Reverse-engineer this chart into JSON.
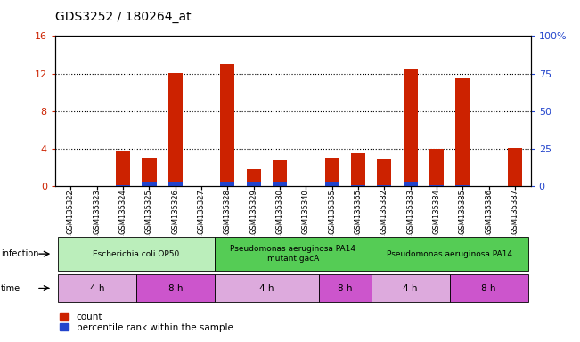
{
  "title": "GDS3252 / 180264_at",
  "samples": [
    "GSM135322",
    "GSM135323",
    "GSM135324",
    "GSM135325",
    "GSM135326",
    "GSM135327",
    "GSM135328",
    "GSM135329",
    "GSM135330",
    "GSM135340",
    "GSM135355",
    "GSM135365",
    "GSM135382",
    "GSM135383",
    "GSM135384",
    "GSM135385",
    "GSM135386",
    "GSM135387"
  ],
  "count_values_all": [
    0,
    0,
    3.7,
    3.1,
    12.1,
    0,
    13.0,
    1.8,
    2.8,
    0,
    3.1,
    3.5,
    3.0,
    12.4,
    4.0,
    11.5,
    0,
    4.1
  ],
  "percentile_values_all": [
    0,
    0,
    1.0,
    3.2,
    3.1,
    0,
    3.1,
    3.0,
    3.0,
    0,
    3.0,
    0.8,
    1.0,
    3.3,
    1.0,
    0.8,
    0,
    0.4
  ],
  "ylim_left": [
    0,
    16
  ],
  "ylim_right": [
    0,
    100
  ],
  "yticks_left": [
    0,
    4,
    8,
    12,
    16
  ],
  "yticks_right": [
    0,
    25,
    50,
    75,
    100
  ],
  "bar_color_red": "#cc2200",
  "bar_color_blue": "#2244cc",
  "bar_width": 0.55,
  "infection_groups": [
    {
      "label": "Escherichia coli OP50",
      "start": 0,
      "end": 5,
      "color": "#bbeebb"
    },
    {
      "label": "Pseudomonas aeruginosa PA14\nmutant gacA",
      "start": 6,
      "end": 11,
      "color": "#55cc55"
    },
    {
      "label": "Pseudomonas aeruginosa PA14",
      "start": 12,
      "end": 17,
      "color": "#55cc55"
    }
  ],
  "time_groups": [
    {
      "label": "4 h",
      "start": 0,
      "end": 2,
      "color": "#ddaadd"
    },
    {
      "label": "8 h",
      "start": 3,
      "end": 5,
      "color": "#cc55cc"
    },
    {
      "label": "4 h",
      "start": 6,
      "end": 9,
      "color": "#ddaadd"
    },
    {
      "label": "8 h",
      "start": 10,
      "end": 11,
      "color": "#cc55cc"
    },
    {
      "label": "4 h",
      "start": 12,
      "end": 14,
      "color": "#ddaadd"
    },
    {
      "label": "8 h",
      "start": 15,
      "end": 17,
      "color": "#cc55cc"
    }
  ],
  "legend_count_label": "count",
  "legend_percentile_label": "percentile rank within the sample",
  "grid_color": "#000000",
  "background_color": "#ffffff",
  "tick_label_color_left": "#cc2200",
  "tick_label_color_right": "#2244cc",
  "xticklabel_bg": "#dddddd",
  "title_fontsize": 10,
  "axis_fontsize": 8,
  "label_fontsize": 7.5
}
